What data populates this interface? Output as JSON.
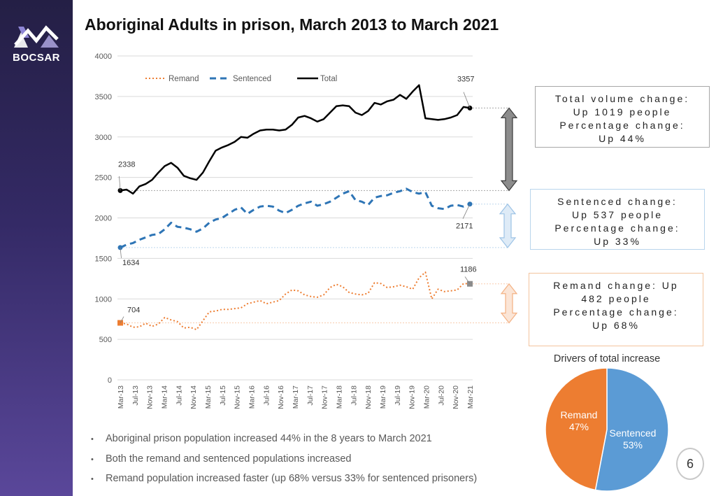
{
  "brand": {
    "name": "BOCSAR",
    "accent": "#3f3580"
  },
  "title": "Aboriginal Adults in prison, March 2013 to March 2021",
  "chart_data": {
    "type": "line",
    "title": "Aboriginal Adults in prison, March 2013 to March 2021",
    "xlabel": "",
    "ylabel": "",
    "ylim": [
      0,
      4000
    ],
    "y_ticks": [
      0,
      500,
      1000,
      1500,
      2000,
      2500,
      3000,
      3500,
      4000
    ],
    "grid": true,
    "legend_position": "top-left",
    "x_tick_labels": [
      "Mar-13",
      "Jul-13",
      "Nov-13",
      "Mar-14",
      "Jul-14",
      "Nov-14",
      "Mar-15",
      "Jul-15",
      "Nov-15",
      "Mar-16",
      "Jul-16",
      "Nov-16",
      "Mar-17",
      "Jul-17",
      "Nov-17",
      "Mar-18",
      "Jul-18",
      "Nov-18",
      "Mar-19",
      "Jul-19",
      "Nov-19",
      "Mar-20",
      "Jul-20",
      "Nov-20",
      "Mar-21"
    ],
    "series": [
      {
        "name": "Remand",
        "color": "#ed7d31",
        "style": "dotted",
        "values": [
          704,
          690,
          650,
          655,
          700,
          660,
          690,
          770,
          740,
          720,
          640,
          650,
          620,
          730,
          840,
          850,
          870,
          870,
          880,
          890,
          940,
          960,
          980,
          940,
          960,
          980,
          1060,
          1110,
          1100,
          1050,
          1030,
          1020,
          1050,
          1140,
          1180,
          1150,
          1080,
          1060,
          1050,
          1070,
          1200,
          1190,
          1140,
          1150,
          1170,
          1150,
          1120,
          1260,
          1330,
          1000,
          1120,
          1090,
          1100,
          1110,
          1190,
          1186
        ]
      },
      {
        "name": "Sentenced",
        "color": "#2e75b6",
        "style": "dashed",
        "values": [
          1634,
          1670,
          1690,
          1730,
          1760,
          1790,
          1800,
          1860,
          1940,
          1890,
          1880,
          1860,
          1830,
          1870,
          1940,
          1980,
          2000,
          2050,
          2100,
          2130,
          2050,
          2100,
          2140,
          2150,
          2140,
          2090,
          2060,
          2100,
          2150,
          2180,
          2200,
          2150,
          2170,
          2200,
          2250,
          2300,
          2330,
          2220,
          2200,
          2160,
          2250,
          2270,
          2280,
          2310,
          2330,
          2360,
          2320,
          2300,
          2320,
          2150,
          2120,
          2110,
          2150,
          2160,
          2140,
          2171
        ]
      },
      {
        "name": "Total",
        "color": "#000000",
        "style": "solid",
        "values": [
          2338,
          2350,
          2300,
          2390,
          2420,
          2470,
          2560,
          2640,
          2680,
          2620,
          2520,
          2490,
          2470,
          2560,
          2700,
          2830,
          2870,
          2900,
          2940,
          3000,
          2990,
          3040,
          3080,
          3090,
          3090,
          3080,
          3090,
          3150,
          3240,
          3260,
          3230,
          3190,
          3220,
          3300,
          3380,
          3390,
          3380,
          3300,
          3270,
          3320,
          3420,
          3400,
          3440,
          3460,
          3520,
          3470,
          3560,
          3640,
          3230,
          3220,
          3210,
          3220,
          3240,
          3270,
          3370,
          3357
        ]
      }
    ],
    "data_labels": [
      {
        "series": "Total",
        "point": "first",
        "text": "2338"
      },
      {
        "series": "Total",
        "point": "last",
        "text": "3357"
      },
      {
        "series": "Sentenced",
        "point": "first",
        "text": "1634"
      },
      {
        "series": "Sentenced",
        "point": "last",
        "text": "2171"
      },
      {
        "series": "Remand",
        "point": "first",
        "text": "704"
      },
      {
        "series": "Remand",
        "point": "last",
        "text": "1186"
      }
    ]
  },
  "pie": {
    "title": "Drivers of total increase",
    "slices": [
      {
        "name": "Remand",
        "pct": "47%",
        "value": 47,
        "color": "#ed7d31"
      },
      {
        "name": "Sentenced",
        "pct": "53%",
        "value": 53,
        "color": "#5b9bd5"
      }
    ]
  },
  "boxes": {
    "total": [
      "Total volume change:",
      "Up 1019 people",
      "Percentage change:",
      "Up 44%"
    ],
    "sentenced": [
      "Sentenced change:",
      "Up 537 people",
      "Percentage change:",
      "Up 33%"
    ],
    "remand": [
      "Remand change: Up",
      "482 people",
      "Percentage change:",
      "Up 68%"
    ]
  },
  "bullets": [
    "Aboriginal prison population increased 44% in the 8 years to March 2021",
    "Both the remand and sentenced populations increased",
    "Remand population increased faster (up 68% versus 33% for sentenced prisoners)"
  ],
  "bullet_glyph": "•",
  "page_number": "6"
}
